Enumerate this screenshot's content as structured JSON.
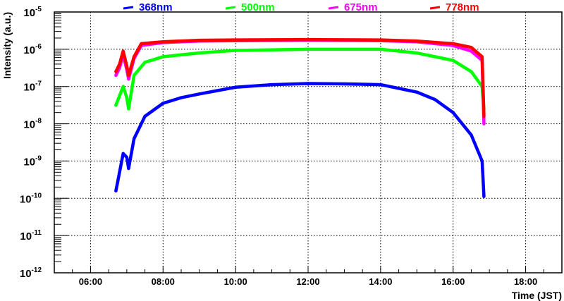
{
  "chart_data": {
    "type": "scatter",
    "title": "",
    "xlabel": "Time (JST)",
    "ylabel": "Intensity (a.u.)",
    "xlim": [
      5,
      19
    ],
    "ylim_log10": [
      -12,
      -5
    ],
    "yscale": "log",
    "grid": true,
    "legend_placement": "top",
    "x_ticks": [
      {
        "v": 6,
        "label": "06:00"
      },
      {
        "v": 8,
        "label": "08:00"
      },
      {
        "v": 10,
        "label": "10:00"
      },
      {
        "v": 12,
        "label": "12:00"
      },
      {
        "v": 14,
        "label": "14:00"
      },
      {
        "v": 16,
        "label": "16:00"
      },
      {
        "v": 18,
        "label": "18:00"
      }
    ],
    "y_ticks": [
      {
        "e": -5,
        "label": "-5"
      },
      {
        "e": -6,
        "label": "-6"
      },
      {
        "e": -7,
        "label": "-7"
      },
      {
        "e": -8,
        "label": "-8"
      },
      {
        "e": -9,
        "label": "-9"
      },
      {
        "e": -10,
        "label": "-10"
      },
      {
        "e": -11,
        "label": "-11"
      },
      {
        "e": -12,
        "label": "-12"
      }
    ],
    "y_tick_base": "10",
    "series": [
      {
        "name": "368nm",
        "color": "#0000ff",
        "x": [
          6.7,
          6.8,
          6.9,
          7.0,
          7.05,
          7.2,
          7.5,
          8,
          8.5,
          9,
          10,
          11,
          12,
          13,
          14,
          15,
          15.5,
          16,
          16.5,
          16.8,
          16.85
        ],
        "log10_y": [
          -9.8,
          -9.3,
          -8.8,
          -8.9,
          -9.2,
          -8.4,
          -7.8,
          -7.45,
          -7.3,
          -7.2,
          -7.02,
          -6.95,
          -6.92,
          -6.93,
          -6.95,
          -7.15,
          -7.35,
          -7.7,
          -8.3,
          -9.0,
          -9.95
        ]
      },
      {
        "name": "500nm",
        "color": "#00ff00",
        "x": [
          6.7,
          6.9,
          7.0,
          7.05,
          7.2,
          7.5,
          8,
          8.5,
          9,
          10,
          12,
          14,
          15,
          16,
          16.5,
          16.8,
          16.85
        ],
        "log10_y": [
          -7.5,
          -7.0,
          -7.3,
          -7.6,
          -6.7,
          -6.35,
          -6.2,
          -6.15,
          -6.1,
          -6.03,
          -6.0,
          -6.0,
          -6.1,
          -6.3,
          -6.6,
          -7.0,
          -7.6
        ]
      },
      {
        "name": "675nm",
        "color": "#ff00ff",
        "x": [
          6.7,
          6.8,
          6.9,
          7.0,
          7.05,
          7.2,
          7.4,
          8,
          9,
          10,
          12,
          14,
          15,
          16,
          16.5,
          16.8,
          16.85
        ],
        "log10_y": [
          -6.7,
          -6.5,
          -6.15,
          -6.55,
          -6.8,
          -6.25,
          -5.9,
          -5.82,
          -5.78,
          -5.77,
          -5.76,
          -5.77,
          -5.8,
          -5.9,
          -6.05,
          -6.3,
          -8.0
        ]
      },
      {
        "name": "778nm",
        "color": "#ff0000",
        "x": [
          6.7,
          6.8,
          6.9,
          7.0,
          7.05,
          7.2,
          7.4,
          8,
          9,
          10,
          12,
          14,
          15,
          16,
          16.5,
          16.8,
          16.85
        ],
        "log10_y": [
          -6.6,
          -6.4,
          -6.05,
          -6.45,
          -6.7,
          -6.2,
          -5.85,
          -5.8,
          -5.76,
          -5.75,
          -5.74,
          -5.75,
          -5.78,
          -5.85,
          -5.95,
          -6.2,
          -7.8
        ]
      }
    ]
  }
}
